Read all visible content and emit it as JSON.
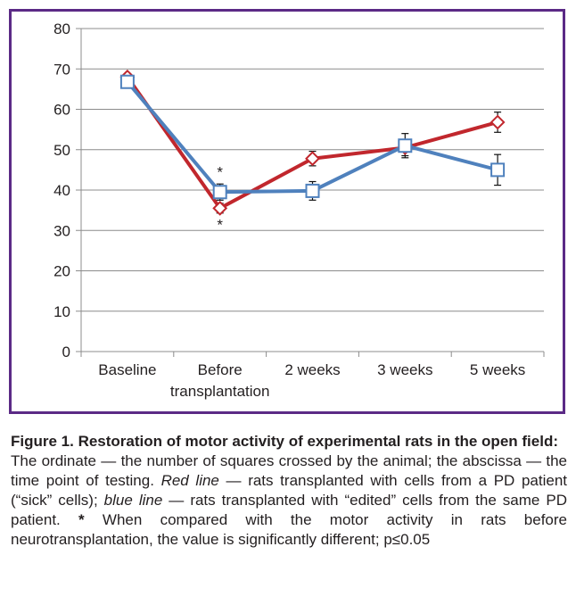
{
  "chart_data": {
    "type": "line",
    "categories": [
      "Baseline",
      "Before transplantation",
      "2 weeks",
      "3 weeks",
      "5 weeks"
    ],
    "category_lines": [
      [
        "Baseline"
      ],
      [
        "Before",
        "transplantation"
      ],
      [
        "2 weeks"
      ],
      [
        "3 weeks"
      ],
      [
        "5 weeks"
      ]
    ],
    "ylim": [
      0,
      80
    ],
    "yticks": [
      0,
      10,
      20,
      30,
      40,
      50,
      60,
      70,
      80
    ],
    "grid": true,
    "series": [
      {
        "color": "#c1272d",
        "marker": "diamond",
        "values": [
          68,
          35.5,
          47.8,
          50.5,
          56.8
        ],
        "errors": [
          0,
          1.2,
          1.8,
          2.0,
          2.5
        ]
      },
      {
        "color": "#4f81bd",
        "marker": "square",
        "values": [
          66.8,
          39.5,
          39.8,
          51,
          45
        ],
        "errors": [
          0,
          2.0,
          2.3,
          3.0,
          3.8
        ]
      }
    ],
    "annotations": [
      {
        "text": "*",
        "category": "Before transplantation",
        "y": 44.5
      },
      {
        "text": "*",
        "category": "Before transplantation",
        "y": 31.5
      }
    ]
  },
  "caption": {
    "title": "Figure 1. Restoration of motor activity of experimental rats in the open field:",
    "t1": "The ordinate — the number of squares crossed by the animal; the abscissa — the time point of testing. ",
    "red_line": "Red line",
    "t2": " — rats transplanted with cells from a PD patient (“sick” cells); ",
    "blue_line": "blue line",
    "t3": " — rats transplanted with “edited” cells from the same PD patient. ",
    "star": "*",
    "t4": " When compared with the motor activity in rats before neurotransplantation, the value is significantly different; p≤0.05"
  }
}
